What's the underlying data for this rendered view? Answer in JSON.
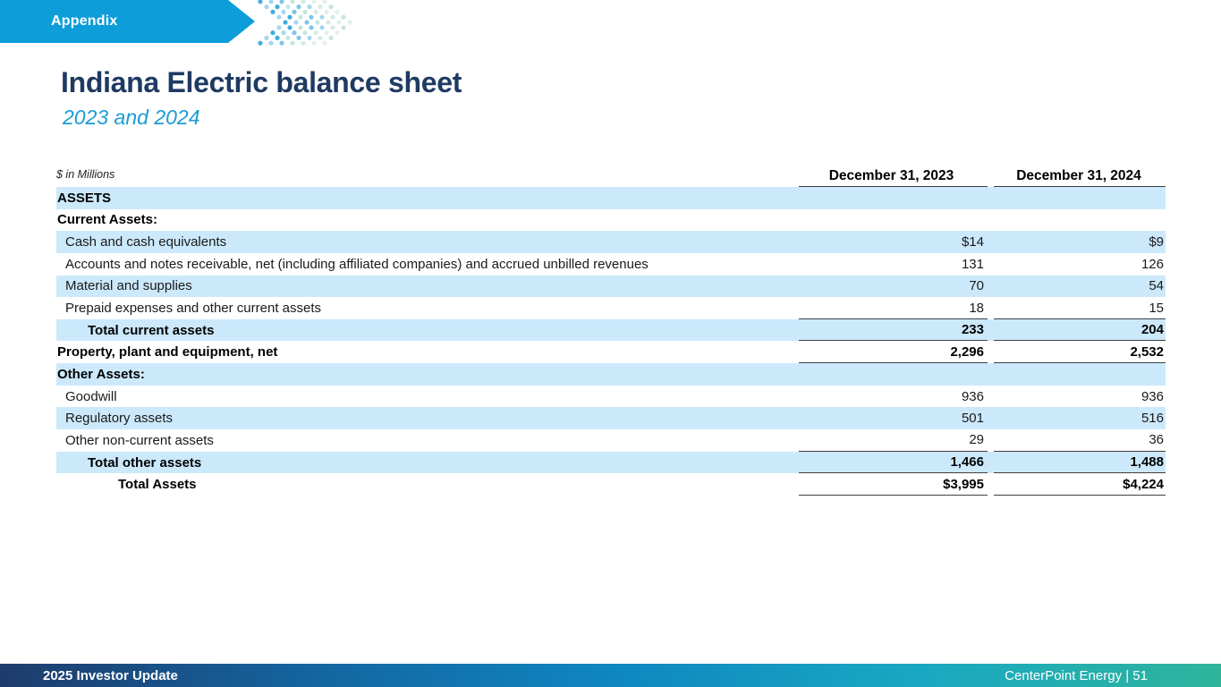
{
  "banner": {
    "label": "Appendix"
  },
  "header": {
    "title": "Indiana Electric balance sheet",
    "subtitle": "2023 and 2024"
  },
  "table": {
    "units_note": "$ in Millions",
    "columns": [
      "December 31, 2023",
      "December 31, 2024"
    ],
    "rows": [
      {
        "label": "ASSETS",
        "v2023": "",
        "v2024": "",
        "bold": true,
        "shaded": true,
        "indent": 0,
        "underline": false
      },
      {
        "label": "Current Assets:",
        "v2023": "",
        "v2024": "",
        "bold": true,
        "shaded": false,
        "indent": 0,
        "underline": false
      },
      {
        "label": "Cash and cash equivalents",
        "v2023": "$14",
        "v2024": "$9",
        "bold": false,
        "shaded": true,
        "indent": 1,
        "underline": false
      },
      {
        "label": "Accounts and notes receivable, net (including affiliated companies) and accrued unbilled revenues",
        "v2023": "131",
        "v2024": "126",
        "bold": false,
        "shaded": false,
        "indent": 1,
        "underline": false
      },
      {
        "label": "Material and supplies",
        "v2023": "70",
        "v2024": "54",
        "bold": false,
        "shaded": true,
        "indent": 1,
        "underline": false
      },
      {
        "label": "Prepaid expenses and other current assets",
        "v2023": "18",
        "v2024": "15",
        "bold": false,
        "shaded": false,
        "indent": 1,
        "underline": true
      },
      {
        "label": "Total current assets",
        "v2023": "233",
        "v2024": "204",
        "bold": true,
        "shaded": true,
        "indent": 2,
        "underline": true
      },
      {
        "label": "Property, plant and equipment, net",
        "v2023": "2,296",
        "v2024": "2,532",
        "bold": true,
        "shaded": false,
        "indent": 0,
        "underline": true
      },
      {
        "label": "Other Assets:",
        "v2023": "",
        "v2024": "",
        "bold": true,
        "shaded": true,
        "indent": 0,
        "underline": false
      },
      {
        "label": "Goodwill",
        "v2023": "936",
        "v2024": "936",
        "bold": false,
        "shaded": false,
        "indent": 1,
        "underline": false
      },
      {
        "label": "Regulatory assets",
        "v2023": "501",
        "v2024": "516",
        "bold": false,
        "shaded": true,
        "indent": 1,
        "underline": false
      },
      {
        "label": "Other non-current assets",
        "v2023": "29",
        "v2024": "36",
        "bold": false,
        "shaded": false,
        "indent": 1,
        "underline": true
      },
      {
        "label": "Total other assets",
        "v2023": "1,466",
        "v2024": "1,488",
        "bold": true,
        "shaded": true,
        "indent": 2,
        "underline": true
      },
      {
        "label": "Total Assets",
        "v2023": "$3,995",
        "v2024": "$4,224",
        "bold": true,
        "shaded": false,
        "indent": 3,
        "underline": true
      }
    ]
  },
  "footer": {
    "left": "2025 Investor Update",
    "right": "CenterPoint Energy | 51"
  },
  "colors": {
    "banner_blue": "#0d9dd9",
    "title_navy": "#1f3a63",
    "subtitle_blue": "#1b9cd7",
    "row_shade_blue": "#cce9fb",
    "rule_gray": "#3f3f3f",
    "footer_gradient": [
      "#1e3c6c",
      "#0f86c0",
      "#2fb49b"
    ],
    "dot_palette": [
      "#3fade1",
      "#a3d7f0",
      "#7cc6ea",
      "#c6e5e0",
      "#d6eae5",
      "#e3f0eb"
    ]
  }
}
